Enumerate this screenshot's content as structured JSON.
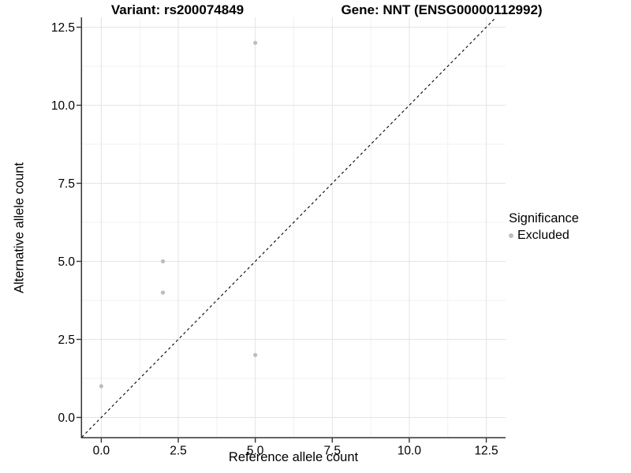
{
  "chart_data": {
    "type": "scatter",
    "titles": {
      "left": "Variant: rs200074849",
      "right": "Gene: NNT (ENSG00000112992)"
    },
    "x_axis": {
      "title": "Reference allele count",
      "range": [
        -0.625,
        13.125
      ],
      "major_ticks": [
        0,
        2.5,
        5,
        7.5,
        10,
        12.5
      ],
      "tick_labels": [
        "0.0",
        "2.5",
        "5.0",
        "7.5",
        "10.0",
        "12.5"
      ],
      "minor_ticks": [
        1.25,
        3.75,
        6.25,
        8.75,
        11.25
      ]
    },
    "y_axis": {
      "title": "Alternative allele count",
      "range": [
        -0.625,
        13.125
      ],
      "major_ticks": [
        0,
        2.5,
        5,
        7.5,
        10,
        12.5
      ],
      "tick_labels": [
        "0.0",
        "2.5",
        "5.0",
        "7.5",
        "10.0",
        "12.5"
      ],
      "minor_ticks": [
        1.25,
        3.75,
        6.25,
        8.75,
        11.25
      ]
    },
    "points": [
      {
        "x": 0,
        "y": 1
      },
      {
        "x": 2,
        "y": 4
      },
      {
        "x": 2,
        "y": 5
      },
      {
        "x": 5,
        "y": 2
      },
      {
        "x": 5,
        "y": 12
      }
    ],
    "point_color": "#bdbdbd",
    "identity_line": {
      "type": "y=x",
      "style": "dashed",
      "color": "#000000"
    },
    "legend": {
      "title": "Significance",
      "entries": [
        {
          "label": "Excluded",
          "color": "#bdbdbd",
          "shape": "circle"
        }
      ]
    },
    "style": {
      "grid_major_color": "#e4e4e4",
      "grid_minor_color": "#f1f1f1",
      "axis_color": "#333333",
      "text_color": "#000000",
      "background": "#ffffff"
    }
  }
}
